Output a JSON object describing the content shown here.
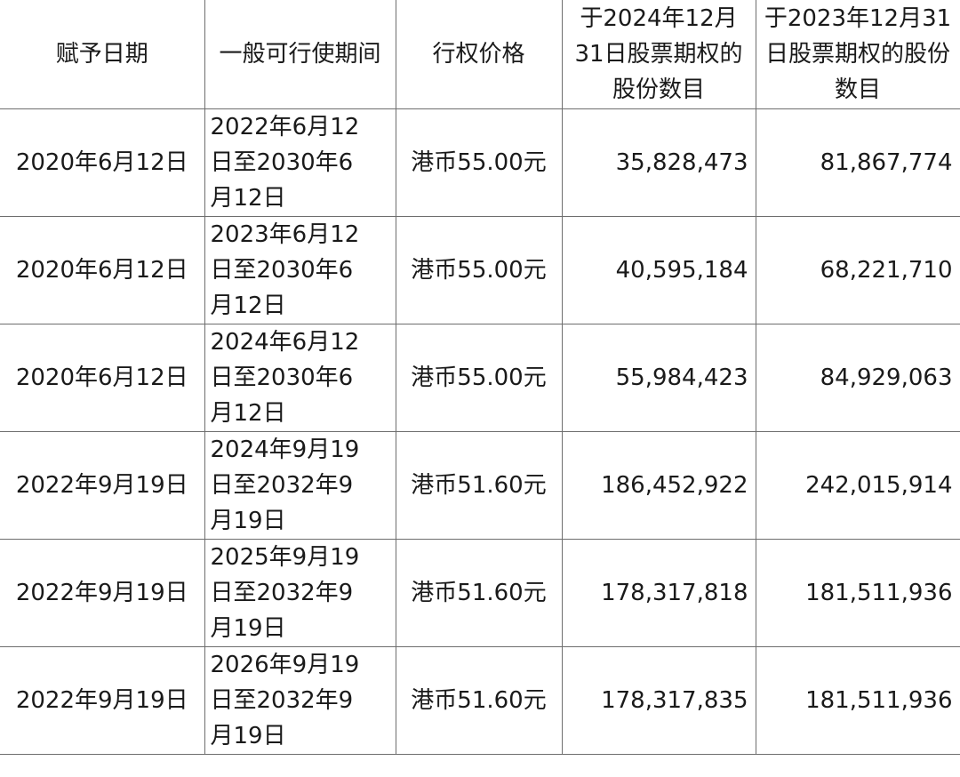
{
  "headers": [
    "赋予日期",
    "一般可行使期间",
    "行权价格",
    "于2024年12月31日股票期权的股份数目",
    "于2023年12月31日股票期权的股份数目"
  ],
  "rows": [
    {
      "grant_date": "2020年6月12日",
      "period_lines": [
        "2022年6月12",
        "日至2030年6",
        "月12日"
      ],
      "price": "港币55.00元",
      "shares_2024": "35,828,473",
      "shares_2023": "81,867,774"
    },
    {
      "grant_date": "2020年6月12日",
      "period_lines": [
        "2023年6月12",
        "日至2030年6",
        "月12日"
      ],
      "price": "港币55.00元",
      "shares_2024": "40,595,184",
      "shares_2023": "68,221,710"
    },
    {
      "grant_date": "2020年6月12日",
      "period_lines": [
        "2024年6月12",
        "日至2030年6",
        "月12日"
      ],
      "price": "港币55.00元",
      "shares_2024": "55,984,423",
      "shares_2023": "84,929,063"
    },
    {
      "grant_date": "2022年9月19日",
      "period_lines": [
        "2024年9月19",
        "日至2032年9",
        "月19日"
      ],
      "price": "港币51.60元",
      "shares_2024": "186,452,922",
      "shares_2023": "242,015,914"
    },
    {
      "grant_date": "2022年9月19日",
      "period_lines": [
        "2025年9月19",
        "日至2032年9",
        "月19日"
      ],
      "price": "港币51.60元",
      "shares_2024": "178,317,818",
      "shares_2023": "181,511,936"
    },
    {
      "grant_date": "2022年9月19日",
      "period_lines": [
        "2026年9月19",
        "日至2032年9",
        "月19日"
      ],
      "price": "港币51.60元",
      "shares_2024": "178,317,835",
      "shares_2023": "181,511,936"
    }
  ]
}
